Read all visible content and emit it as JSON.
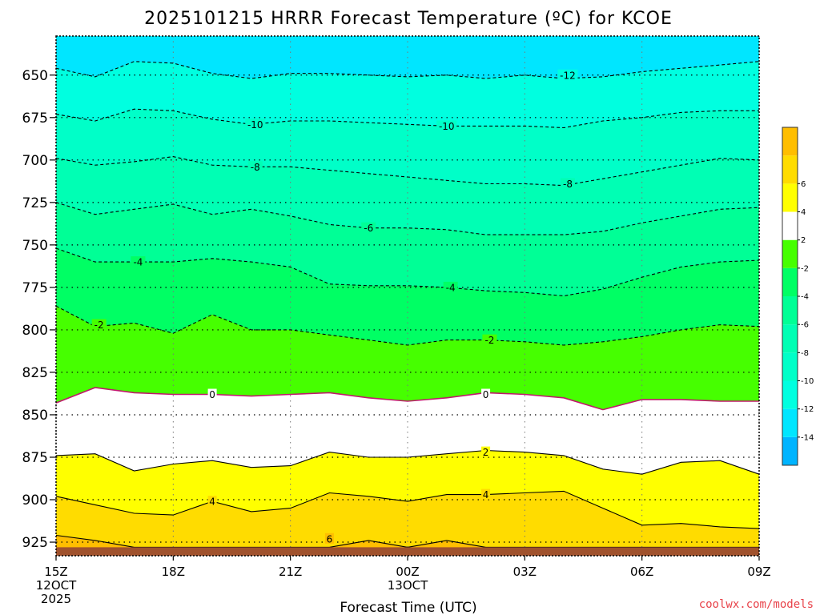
{
  "colors": {
    "credit": "#e8434a",
    "ground": "#a0522d",
    "freezing_line": "#c0186c"
  },
  "chart_data": {
    "type": "contour",
    "title": "2025101215 HRRR Forecast Temperature (ºC) for KCOE",
    "xlabel": "Forecast Time (UTC)",
    "x_range_hours": [
      0,
      18
    ],
    "y_axis": {
      "variable": "pressure (hPa)",
      "range": [
        933,
        627
      ],
      "reversed": true,
      "ticks": [
        650,
        675,
        700,
        725,
        750,
        775,
        800,
        825,
        850,
        875,
        900,
        925
      ]
    },
    "x_ticks": [
      {
        "hour": 0,
        "lines": [
          "15Z",
          "12OCT",
          "2025"
        ]
      },
      {
        "hour": 3,
        "lines": [
          "18Z"
        ]
      },
      {
        "hour": 6,
        "lines": [
          "21Z"
        ]
      },
      {
        "hour": 9,
        "lines": [
          "00Z",
          "13OCT"
        ]
      },
      {
        "hour": 12,
        "lines": [
          "03Z"
        ]
      },
      {
        "hour": 15,
        "lines": [
          "06Z"
        ]
      },
      {
        "hour": 18,
        "lines": [
          "09Z"
        ]
      }
    ],
    "ground_pressure": 928,
    "top_level_color": "#00e6ff",
    "contour_levels": [
      {
        "level": -12,
        "color": "#00ffe0",
        "line": "dashed",
        "p": [
          646,
          651,
          642,
          643,
          649,
          652,
          649,
          649,
          650,
          651,
          650,
          652,
          650,
          652,
          651,
          648,
          646,
          644,
          642
        ]
      },
      {
        "level": -10,
        "color": "#00ffc8",
        "line": "dashed",
        "p": [
          673,
          677,
          670,
          671,
          676,
          679,
          677,
          677,
          678,
          679,
          680,
          680,
          680,
          681,
          677,
          675,
          672,
          671,
          671
        ]
      },
      {
        "level": -8,
        "color": "#00ffb4",
        "line": "dashed",
        "p": [
          699,
          703,
          701,
          698,
          703,
          704,
          704,
          706,
          708,
          710,
          712,
          714,
          714,
          715,
          711,
          707,
          703,
          699,
          700
        ]
      },
      {
        "level": -6,
        "color": "#00ff96",
        "line": "dashed",
        "p": [
          725,
          732,
          729,
          726,
          732,
          729,
          733,
          738,
          740,
          740,
          741,
          744,
          744,
          744,
          742,
          737,
          733,
          729,
          728
        ]
      },
      {
        "level": -4,
        "color": "#00ff64",
        "line": "dashed",
        "p": [
          752,
          760,
          760,
          760,
          758,
          760,
          763,
          773,
          774,
          774,
          775,
          777,
          778,
          780,
          776,
          769,
          763,
          760,
          759
        ]
      },
      {
        "level": -2,
        "color": "#46ff00",
        "line": "dashed",
        "p": [
          786,
          798,
          796,
          802,
          791,
          800,
          800,
          803,
          806,
          809,
          806,
          806,
          807,
          809,
          807,
          804,
          800,
          797,
          798
        ]
      },
      {
        "level": 0,
        "color": "#ffffff",
        "line": "solid",
        "p": [
          843,
          834,
          837,
          838,
          838,
          839,
          838,
          837,
          840,
          842,
          840,
          837,
          838,
          840,
          847,
          841,
          841,
          842,
          842
        ]
      },
      {
        "level": 2,
        "color": "#ffff00",
        "line": "solid",
        "p": [
          874,
          873,
          883,
          879,
          877,
          881,
          880,
          872,
          875,
          875,
          873,
          871,
          872,
          874,
          882,
          885,
          878,
          877,
          885
        ]
      },
      {
        "level": 4,
        "color": "#ffdc00",
        "line": "solid",
        "p": [
          898,
          903,
          908,
          909,
          901,
          907,
          905,
          896,
          898,
          901,
          897,
          897,
          896,
          895,
          905,
          915,
          914,
          916,
          917
        ]
      },
      {
        "level": 6,
        "color": "#ffbe00",
        "line": "solid",
        "p": [
          921,
          924,
          928,
          928,
          928,
          928,
          928,
          928,
          924,
          928,
          924,
          928,
          928,
          928,
          928,
          928,
          928,
          928,
          928
        ]
      }
    ],
    "contour_labels": [
      {
        "text": "-12",
        "hour": 13.1,
        "p": 650
      },
      {
        "text": "-10",
        "hour": 5.1,
        "p": 679
      },
      {
        "text": "-10",
        "hour": 10.0,
        "p": 680
      },
      {
        "text": "-8",
        "hour": 5.1,
        "p": 704
      },
      {
        "text": "-8",
        "hour": 13.1,
        "p": 714
      },
      {
        "text": "-6",
        "hour": 8.0,
        "p": 740
      },
      {
        "text": "-4",
        "hour": 2.1,
        "p": 760
      },
      {
        "text": "-4",
        "hour": 10.1,
        "p": 775
      },
      {
        "text": "-2",
        "hour": 1.1,
        "p": 797
      },
      {
        "text": "-2",
        "hour": 11.1,
        "p": 806
      },
      {
        "text": "0",
        "hour": 4.0,
        "p": 838
      },
      {
        "text": "0",
        "hour": 11.0,
        "p": 838
      },
      {
        "text": "2",
        "hour": 11.0,
        "p": 872
      },
      {
        "text": "4",
        "hour": 4.0,
        "p": 901
      },
      {
        "text": "4",
        "hour": 11.0,
        "p": 897
      },
      {
        "text": "6",
        "hour": 7.0,
        "p": 923
      }
    ],
    "colorbar": {
      "boundaries": [
        -16,
        -14,
        -12,
        -10,
        -8,
        -6,
        -4,
        -2,
        2,
        4,
        6,
        8
      ],
      "colors": [
        "#00b4ff",
        "#00e6ff",
        "#00ffe0",
        "#00ffc8",
        "#00ffb4",
        "#00ff96",
        "#00ff64",
        "#46ff00",
        "#ffffff",
        "#ffff00",
        "#ffdc00",
        "#ffbe00"
      ],
      "labels": [
        "-14",
        "-12",
        "-10",
        "-8",
        "-6",
        "-4",
        "-2",
        "2",
        "4",
        "6"
      ]
    }
  },
  "credit": "coolwx.com/models"
}
